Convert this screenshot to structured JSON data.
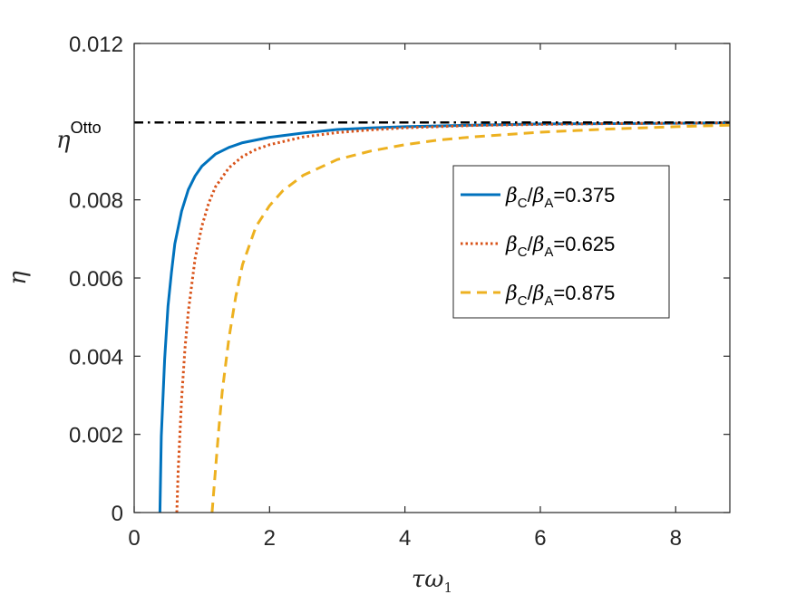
{
  "chart_data": {
    "type": "line",
    "xlabel": {
      "main": "τω",
      "sub": "1"
    },
    "ylabel": "η",
    "xlim": [
      0,
      8.8
    ],
    "ylim": [
      0,
      0.012
    ],
    "xticks": [
      0,
      2,
      4,
      6,
      8
    ],
    "xtick_labels": [
      "0",
      "2",
      "4",
      "6",
      "8"
    ],
    "yticks": [
      0,
      0.002,
      0.004,
      0.006,
      0.008,
      0.012
    ],
    "ytick_labels": [
      "0",
      "0.002",
      "0.004",
      "0.006",
      "0.008",
      "0.012"
    ],
    "reference_line": {
      "y": 0.00998,
      "label_main": "η",
      "label_sup": "Otto",
      "color": "#000000",
      "style": "dashdot"
    },
    "legend_position": "right",
    "grid": false,
    "series": [
      {
        "name": {
          "beta1": "β",
          "sub1": "C",
          "slash": "/",
          "beta2": "β",
          "sub2": "A",
          "value": "=0.375"
        },
        "color": "#0072BD",
        "style": "solid",
        "x": [
          0.38,
          0.4,
          0.45,
          0.5,
          0.55,
          0.6,
          0.7,
          0.8,
          0.9,
          1.0,
          1.2,
          1.4,
          1.6,
          1.8,
          2.0,
          2.5,
          3.0,
          3.5,
          4.0,
          5.0,
          6.0,
          7.0,
          8.0,
          8.8
        ],
        "y": [
          0.0,
          0.00195,
          0.00392,
          0.00528,
          0.00614,
          0.00687,
          0.00771,
          0.00826,
          0.00861,
          0.00886,
          0.00917,
          0.00934,
          0.00946,
          0.00953,
          0.0096,
          0.00971,
          0.0098,
          0.00984,
          0.00987,
          0.00991,
          0.00994,
          0.00995,
          0.00996,
          0.00997
        ]
      },
      {
        "name": {
          "beta1": "β",
          "sub1": "C",
          "slash": "/",
          "beta2": "β",
          "sub2": "A",
          "value": "=0.625"
        },
        "color": "#D95319",
        "style": "dotted",
        "x": [
          0.63,
          0.65,
          0.7,
          0.75,
          0.8,
          0.9,
          1.0,
          1.1,
          1.2,
          1.4,
          1.6,
          1.8,
          2.0,
          2.5,
          3.0,
          3.5,
          4.0,
          5.0,
          6.0,
          7.0,
          8.0,
          8.8
        ],
        "y": [
          0.0,
          0.00106,
          0.0029,
          0.00419,
          0.00514,
          0.0065,
          0.00733,
          0.00791,
          0.00833,
          0.00882,
          0.00911,
          0.00929,
          0.00941,
          0.00961,
          0.00972,
          0.00979,
          0.00984,
          0.0099,
          0.00993,
          0.00995,
          0.00996,
          0.00997
        ]
      },
      {
        "name": {
          "beta1": "β",
          "sub1": "C",
          "slash": "/",
          "beta2": "β",
          "sub2": "A",
          "value": "=0.875"
        },
        "color": "#EDB120",
        "style": "dashed",
        "x": [
          1.15,
          1.2,
          1.25,
          1.3,
          1.4,
          1.5,
          1.6,
          1.8,
          2.0,
          2.2,
          2.5,
          3.0,
          3.5,
          4.0,
          4.5,
          5.0,
          6.0,
          7.0,
          8.0,
          8.8
        ],
        "y": [
          0.0,
          0.00108,
          0.00213,
          0.00309,
          0.00446,
          0.00552,
          0.00634,
          0.00732,
          0.00785,
          0.00824,
          0.00863,
          0.00903,
          0.00925,
          0.00941,
          0.00953,
          0.00961,
          0.00973,
          0.00981,
          0.00987,
          0.00991
        ]
      }
    ]
  }
}
